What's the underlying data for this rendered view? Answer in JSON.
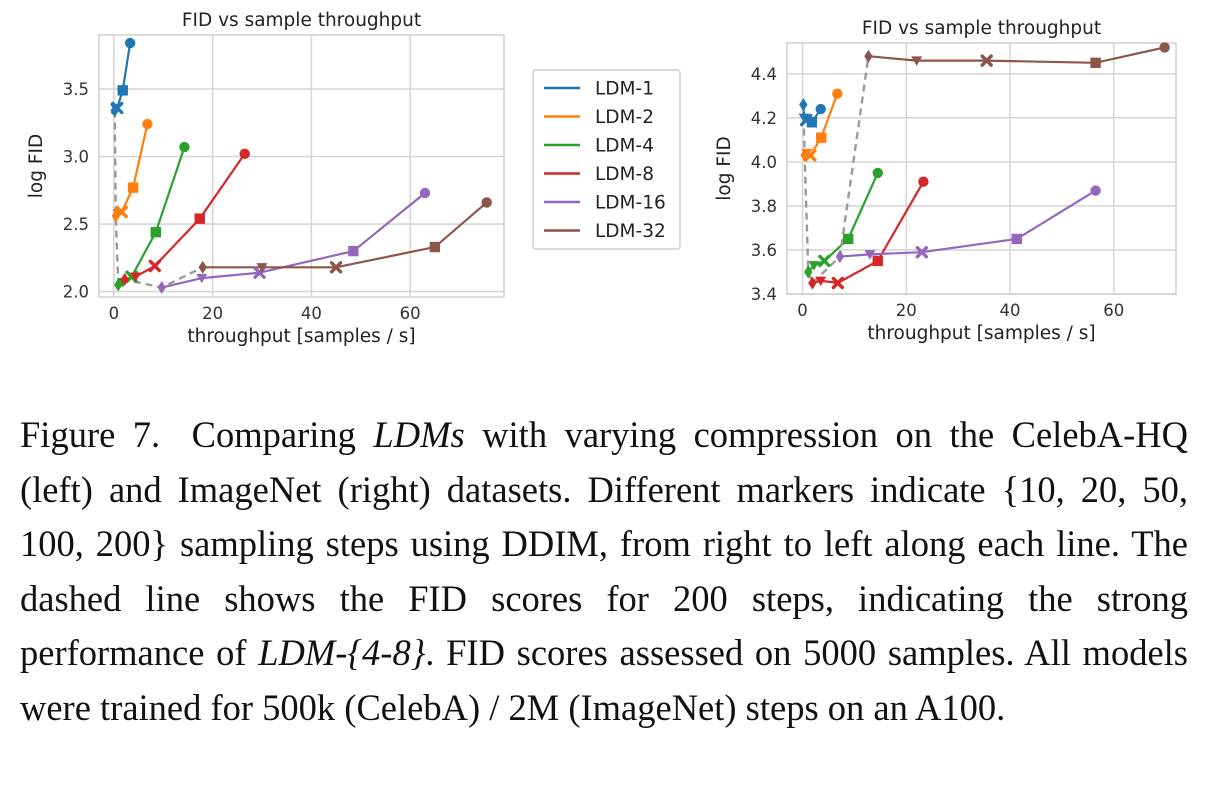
{
  "legend": [
    {
      "name": "LDM-1",
      "color": "#1f77b4"
    },
    {
      "name": "LDM-2",
      "color": "#ff7f0e"
    },
    {
      "name": "LDM-4",
      "color": "#2ca02c"
    },
    {
      "name": "LDM-8",
      "color": "#d62728"
    },
    {
      "name": "LDM-16",
      "color": "#9467bd"
    },
    {
      "name": "LDM-32",
      "color": "#8c564b"
    }
  ],
  "markers_by_steps": {
    "10": "circle",
    "20": "square",
    "50": "x",
    "100": "triangle-down",
    "200": "diamond"
  },
  "chart_data": [
    {
      "type": "line",
      "panel": "left",
      "title": "FID vs sample throughput",
      "xlabel": "throughput [samples / s]",
      "ylabel": "log FID",
      "xlim": [
        -3,
        79
      ],
      "ylim": [
        1.96,
        3.9
      ],
      "xticks": [
        0,
        20,
        40,
        60
      ],
      "yticks": [
        2.0,
        2.5,
        3.0,
        3.5
      ],
      "ytick_labels": [
        "2.0",
        "2.5",
        "3.0",
        "3.5"
      ],
      "grid": true,
      "step_order": [
        10,
        20,
        50,
        100,
        200
      ],
      "series": [
        {
          "name": "LDM-1",
          "x": [
            3.3,
            1.8,
            0.7,
            0.35,
            0.18
          ],
          "y": [
            3.84,
            3.49,
            3.36,
            3.36,
            3.34
          ]
        },
        {
          "name": "LDM-2",
          "x": [
            6.8,
            3.9,
            1.6,
            0.8,
            0.4
          ],
          "y": [
            3.24,
            2.77,
            2.59,
            2.58,
            2.56
          ]
        },
        {
          "name": "LDM-4",
          "x": [
            14.3,
            8.5,
            3.6,
            1.8,
            0.9
          ],
          "y": [
            3.07,
            2.44,
            2.11,
            2.07,
            2.05
          ]
        },
        {
          "name": "LDM-8",
          "x": [
            26.5,
            17.4,
            8.3,
            4.4,
            2.2
          ],
          "y": [
            3.02,
            2.54,
            2.19,
            2.11,
            2.09
          ]
        },
        {
          "name": "LDM-16",
          "x": [
            63,
            48.5,
            29.5,
            17.8,
            9.7
          ],
          "y": [
            2.73,
            2.3,
            2.14,
            2.1,
            2.03
          ]
        },
        {
          "name": "LDM-32",
          "x": [
            75.5,
            65,
            45,
            30,
            18
          ],
          "y": [
            2.66,
            2.33,
            2.18,
            2.18,
            2.18
          ]
        }
      ]
    },
    {
      "type": "line",
      "panel": "right",
      "title": "FID vs sample throughput",
      "xlabel": "throughput [samples / s]",
      "ylabel": "log FID",
      "xlim": [
        -3,
        72
      ],
      "ylim": [
        3.4,
        4.54
      ],
      "xticks": [
        0,
        20,
        40,
        60
      ],
      "yticks": [
        3.4,
        3.6,
        3.8,
        4.0,
        4.2,
        4.4
      ],
      "ytick_labels": [
        "3.4",
        "3.6",
        "3.8",
        "4.0",
        "4.2",
        "4.4"
      ],
      "grid": true,
      "step_order": [
        10,
        20,
        50,
        100,
        200
      ],
      "series": [
        {
          "name": "LDM-1",
          "x": [
            3.5,
            1.8,
            0.7,
            0.3,
            0.15
          ],
          "y": [
            4.24,
            4.18,
            4.19,
            4.2,
            4.26
          ]
        },
        {
          "name": "LDM-2",
          "x": [
            6.7,
            3.6,
            1.5,
            0.8,
            0.4
          ],
          "y": [
            4.31,
            4.11,
            4.03,
            4.04,
            4.03
          ]
        },
        {
          "name": "LDM-4",
          "x": [
            14.5,
            8.8,
            4.2,
            2.2,
            1.1
          ],
          "y": [
            3.95,
            3.65,
            3.55,
            3.53,
            3.5
          ]
        },
        {
          "name": "LDM-8",
          "x": [
            23.3,
            14.5,
            6.8,
            3.5,
            1.9
          ],
          "y": [
            3.91,
            3.55,
            3.45,
            3.46,
            3.45
          ]
        },
        {
          "name": "LDM-16",
          "x": [
            56.5,
            41.3,
            23,
            13,
            7.2
          ],
          "y": [
            3.87,
            3.65,
            3.59,
            3.58,
            3.57
          ]
        },
        {
          "name": "LDM-32",
          "x": [
            69.8,
            56.5,
            35.5,
            22,
            12.7
          ],
          "y": [
            4.52,
            4.45,
            4.46,
            4.46,
            4.48
          ]
        }
      ]
    }
  ],
  "caption": {
    "figure_label": "Figure 7.",
    "s1_pre": "Comparing ",
    "s1_em": "LDMs",
    "s1_post": " with varying compression on the CelebA-HQ (left) and ImageNet (right) datasets. Different markers indicate {10, 20, 50, 100, 200} sampling steps using DDIM, from right to left along each line. The dashed line shows the FID scores for 200 steps, indicating the strong performance of ",
    "s2_em": "LDM-{4-8}",
    "s2_post": ". FID scores assessed on 5000 samples. All models were trained for 500k (CelebA) / 2M (ImageNet) steps on an A100."
  }
}
